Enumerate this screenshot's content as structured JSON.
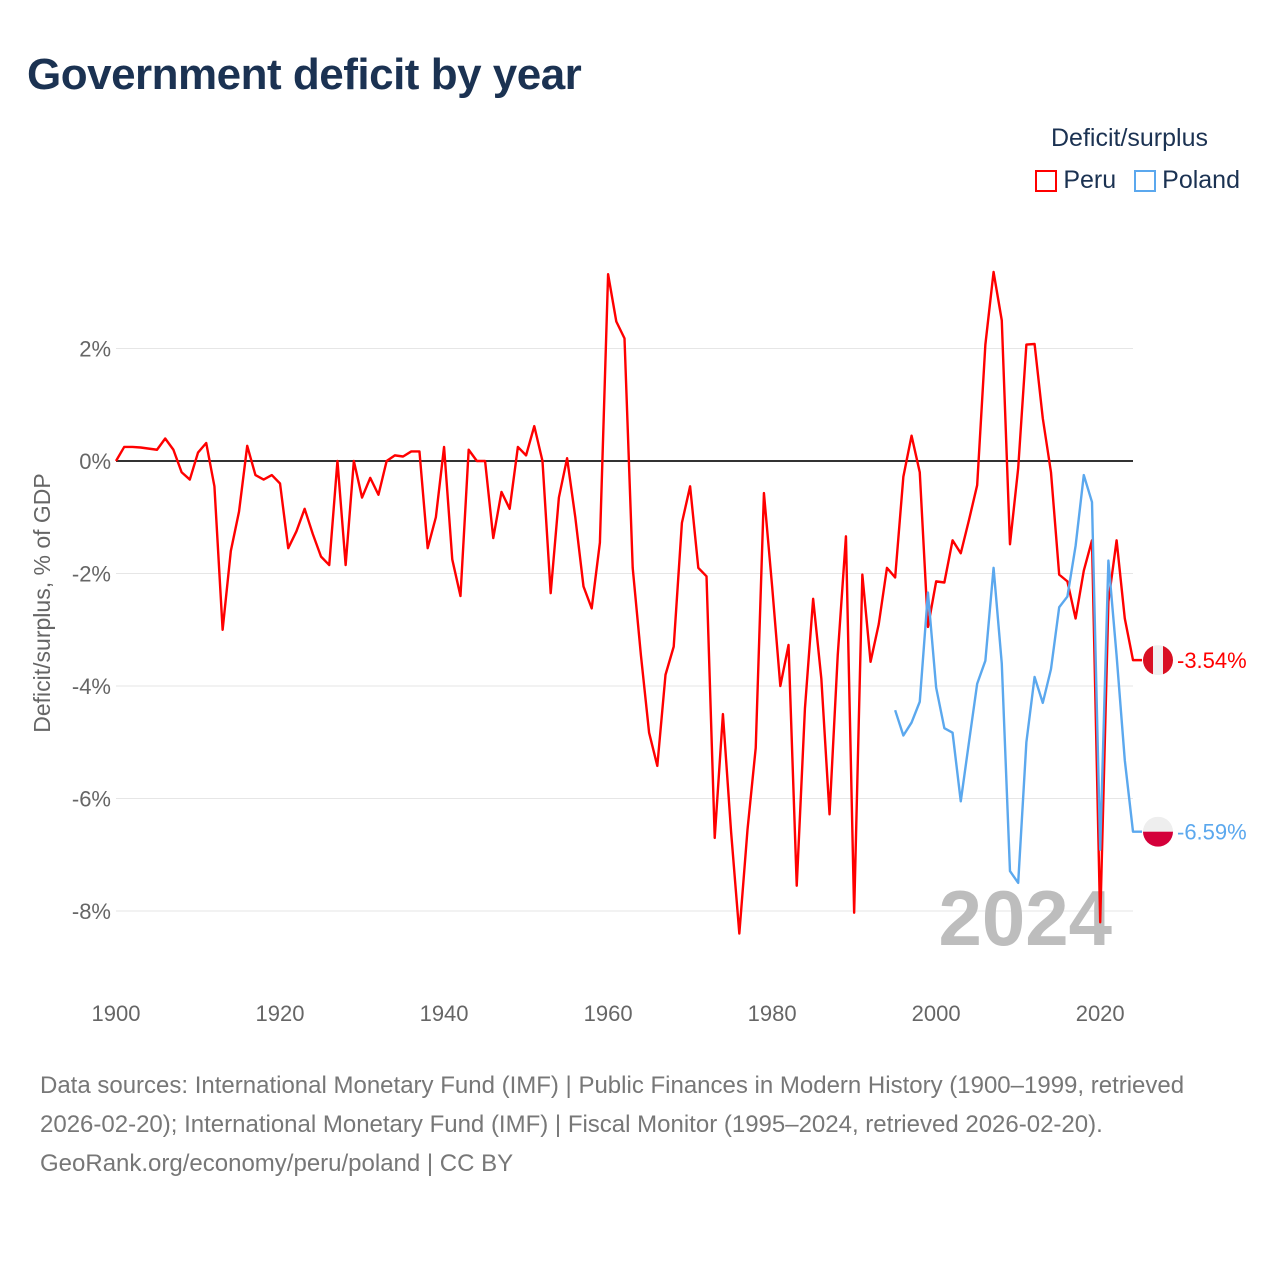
{
  "title": "Government deficit by year",
  "legend": {
    "title": "Deficit/surplus",
    "items": [
      {
        "name": "Peru",
        "color": "#ff0000"
      },
      {
        "name": "Poland",
        "color": "#5ba8ee"
      }
    ]
  },
  "footer": {
    "sources": "Data sources: International Monetary Fund (IMF) | Public Finances in Modern History (1900–1999, retrieved 2026-02-20); International Monetary Fund (IMF) | Fiscal Monitor (1995–2024, retrieved 2026-02-20).",
    "credit": "GeoRank.org/economy/peru/poland | CC BY"
  },
  "chart_data": {
    "type": "line",
    "title": "Government deficit by year",
    "xlabel": "",
    "ylabel": "Deficit/surplus, % of GDP",
    "xlim": [
      1900,
      2024
    ],
    "ylim": [
      -9.2,
      3.7
    ],
    "xticks": [
      1900,
      1920,
      1940,
      1960,
      1980,
      2000,
      2020
    ],
    "xtick_labels": [
      "1900",
      "1920",
      "1940",
      "1960",
      "1980",
      "2000",
      "2020"
    ],
    "yticks": [
      2,
      0,
      -2,
      -4,
      -6,
      -8
    ],
    "ytick_labels": [
      "2%",
      "0%",
      "-2%",
      "-4%",
      "-6%",
      "-8%"
    ],
    "grid": true,
    "legend_position": "top-right",
    "year_annotation": "2024",
    "series": [
      {
        "name": "Peru",
        "color": "#ff0000",
        "end_label": "-3.54%",
        "start_year": 1900,
        "values": [
          0,
          0.25,
          0.25,
          0.24,
          0.22,
          0.2,
          0.4,
          0.2,
          -0.2,
          -0.33,
          0.15,
          0.32,
          -0.45,
          -3.0,
          -1.6,
          -0.9,
          0.27,
          -0.25,
          -0.33,
          -0.25,
          -0.4,
          -1.55,
          -1.25,
          -0.85,
          -1.3,
          -1.7,
          -1.85,
          0,
          -1.85,
          0,
          -0.65,
          -0.3,
          -0.6,
          0,
          0.1,
          0.08,
          0.17,
          0.17,
          -1.55,
          -1.0,
          0.25,
          -1.75,
          -2.4,
          0.2,
          0,
          0,
          -1.37,
          -0.55,
          -0.85,
          0.25,
          0.1,
          0.62,
          0,
          -2.35,
          -0.65,
          0.05,
          -1.0,
          -2.23,
          -2.62,
          -1.45,
          3.32,
          2.48,
          2.18,
          -1.9,
          -3.45,
          -4.83,
          -5.42,
          -3.8,
          -3.3,
          -1.1,
          -0.45,
          -1.9,
          -2.05,
          -6.7,
          -4.5,
          -6.6,
          -8.4,
          -6.55,
          -5.1,
          -0.57,
          -2.23,
          -4.0,
          -3.27,
          -7.55,
          -4.4,
          -2.45,
          -3.87,
          -6.28,
          -3.45,
          -1.34,
          -8.03,
          -2.02,
          -3.57,
          -2.9,
          -1.9,
          -2.07,
          -0.28,
          0.45,
          -0.2,
          -2.95,
          -2.14,
          -2.16,
          -1.41,
          -1.64,
          -1.05,
          -0.43,
          2.07,
          3.36,
          2.5,
          -1.48,
          -0.13,
          2.07,
          2.08,
          0.76,
          -0.2,
          -2.02,
          -2.14,
          -2.8,
          -1.95,
          -1.41,
          -8.2,
          -2.5,
          -1.41,
          -2.8,
          -3.54
        ]
      },
      {
        "name": "Poland",
        "color": "#5ba8ee",
        "end_label": "-6.59%",
        "start_year": 1995,
        "values": [
          -4.43,
          -4.88,
          -4.65,
          -4.28,
          -2.34,
          -4.03,
          -4.75,
          -4.83,
          -6.05,
          -5.0,
          -3.96,
          -3.55,
          -1.9,
          -3.6,
          -7.29,
          -7.5,
          -5.0,
          -3.84,
          -4.3,
          -3.7,
          -2.6,
          -2.41,
          -1.51,
          -0.25,
          -0.73,
          -6.91,
          -1.77,
          -3.46,
          -5.32,
          -6.59
        ]
      }
    ]
  }
}
